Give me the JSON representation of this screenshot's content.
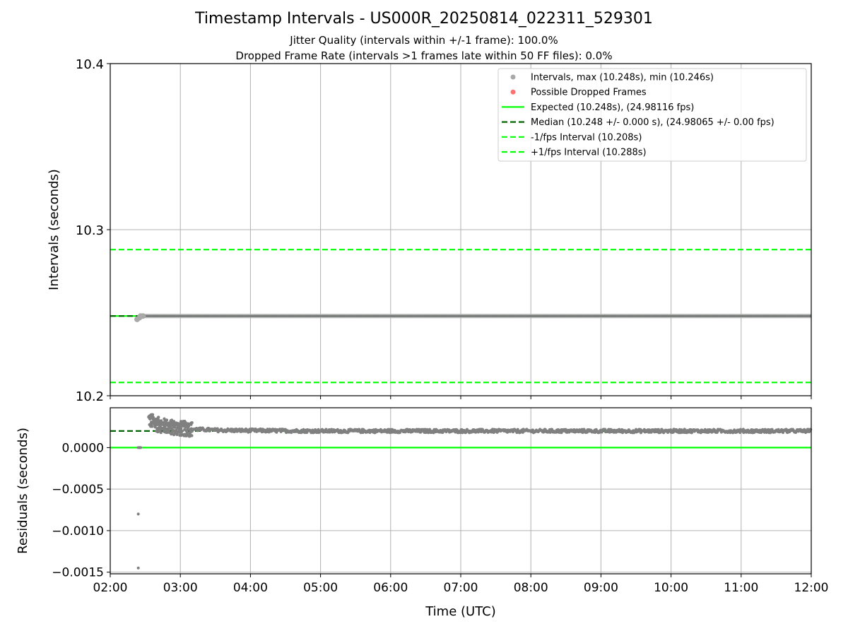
{
  "title": "Timestamp Intervals - US000R_20250814_022311_529301",
  "subtitles": [
    "Jitter Quality (intervals within +/-1 frame): 100.0%",
    "Dropped Frame Rate (intervals >1 frames late within 50 FF files): 0.0%"
  ],
  "colors": {
    "points": "#808080",
    "dropped": "#ff3333",
    "expected": "#00ff00",
    "median": "#006400",
    "fps_bounds": "#00ff00",
    "grid": "#b0b0b0"
  },
  "chart_data": [
    {
      "type": "scatter",
      "name": "intervals",
      "xlabel": "",
      "ylabel": "Intervals (seconds)",
      "xlim": [
        "02:00",
        "12:00"
      ],
      "ylim": [
        10.2,
        10.4
      ],
      "x_ticks": [
        "02:00",
        "03:00",
        "04:00",
        "05:00",
        "06:00",
        "07:00",
        "08:00",
        "09:00",
        "10:00",
        "11:00",
        "12:00"
      ],
      "y_ticks": [
        10.2,
        10.3,
        10.4
      ],
      "y_tick_labels": [
        "10.2",
        "10.3",
        "10.4"
      ],
      "grid": true,
      "legend_placement": "top-right",
      "legend": [
        "Intervals, max (10.248s), min (10.246s)",
        "Possible Dropped Frames",
        "Expected (10.248s), (24.98116 fps)",
        "Median (10.248 +/- 0.000 s), (24.98065 +/- 0.00 fps)",
        "-1/fps Interval (10.208s)",
        "+1/fps Interval (10.288s)"
      ],
      "reference_lines": [
        {
          "name": "expected",
          "y": 10.248,
          "style": "solid"
        },
        {
          "name": "median",
          "y": 10.248,
          "style": "dashed"
        },
        {
          "name": "minus_1_fps",
          "y": 10.208,
          "style": "dashed"
        },
        {
          "name": "plus_1_fps",
          "y": 10.288,
          "style": "dashed"
        }
      ],
      "points": [
        {
          "x": "02:23",
          "y": 10.246
        },
        {
          "x": "02:25",
          "y": 10.247
        },
        {
          "x": "02:26",
          "y": 10.248
        },
        {
          "x": "02:28",
          "y": 10.248
        }
      ],
      "dense_band": {
        "x_start": "02:28",
        "x_end": "12:00",
        "y": 10.248
      }
    },
    {
      "type": "scatter",
      "name": "residuals",
      "xlabel": "Time (UTC)",
      "ylabel": "Residuals (seconds)",
      "xlim": [
        "02:00",
        "12:00"
      ],
      "ylim": [
        -0.00152,
        0.00048
      ],
      "x_ticks": [
        "02:00",
        "03:00",
        "04:00",
        "05:00",
        "06:00",
        "07:00",
        "08:00",
        "09:00",
        "10:00",
        "11:00",
        "12:00"
      ],
      "y_ticks": [
        0.0,
        -0.0005,
        -0.001,
        -0.0015
      ],
      "y_tick_labels": [
        "0.0000",
        "−0.0005",
        "−0.0010",
        "−0.0015"
      ],
      "grid": true,
      "reference_lines": [
        {
          "name": "zero",
          "y": 0.0,
          "style": "solid"
        },
        {
          "name": "median_residual",
          "y": 0.0002,
          "style": "dashed"
        }
      ],
      "outliers": [
        {
          "x": "02:24",
          "y": -0.0008
        },
        {
          "x": "02:24",
          "y": -0.00145
        }
      ],
      "zero_points": [
        {
          "x": "02:24",
          "y": 0.0
        },
        {
          "x": "02:25",
          "y": 0.0
        },
        {
          "x": "02:26",
          "y": 0.0
        }
      ],
      "envelope": [
        {
          "x": "02:33",
          "y": 0.00034
        },
        {
          "x": "02:40",
          "y": 0.00028
        },
        {
          "x": "02:50",
          "y": 0.00025
        },
        {
          "x": "03:00",
          "y": 0.00023
        },
        {
          "x": "03:30",
          "y": 0.00021
        },
        {
          "x": "04:00",
          "y": 0.000205
        },
        {
          "x": "05:00",
          "y": 0.0002
        },
        {
          "x": "06:00",
          "y": 0.0002
        },
        {
          "x": "08:00",
          "y": 0.0002
        },
        {
          "x": "10:00",
          "y": 0.0002
        },
        {
          "x": "12:00",
          "y": 0.0002
        }
      ]
    }
  ]
}
